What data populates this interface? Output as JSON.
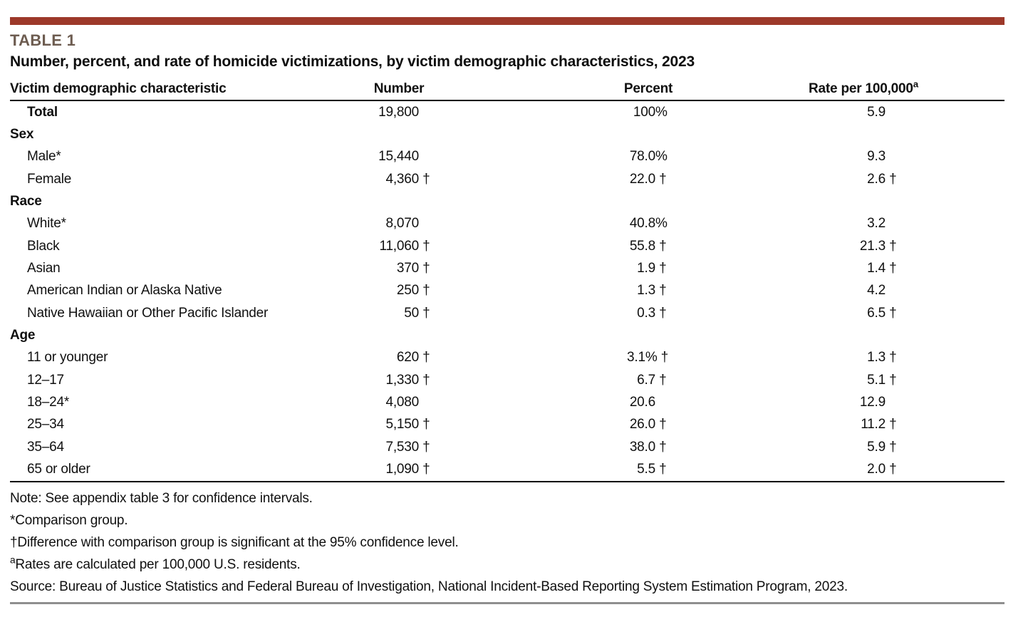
{
  "accent": {
    "bar_color": "#9d392a",
    "table_label_color": "#6d5c50",
    "bottom_rule_color": "#8f8f8f"
  },
  "header": {
    "table_label": "TABLE 1",
    "title": "Number, percent, and rate of homicide victimizations, by victim demographic characteristics, 2023"
  },
  "table": {
    "columns": {
      "characteristic": "Victim demographic characteristic",
      "number": "Number",
      "percent": "Percent",
      "rate": "Rate per 100,000",
      "rate_sup": "a"
    },
    "rows": [
      {
        "kind": "total",
        "label": "Total",
        "number": "19,800",
        "number_sfx": "",
        "percent": "100",
        "percent_sfx": "%",
        "rate": "5.9",
        "rate_sfx": ""
      },
      {
        "kind": "section",
        "label": "Sex",
        "number": "",
        "number_sfx": "",
        "percent": "",
        "percent_sfx": "",
        "rate": "",
        "rate_sfx": ""
      },
      {
        "kind": "data",
        "label": "Male*",
        "number": "15,440",
        "number_sfx": "",
        "percent": "78.0",
        "percent_sfx": "%",
        "rate": "9.3",
        "rate_sfx": ""
      },
      {
        "kind": "data",
        "label": "Female",
        "number": "4,360",
        "number_sfx": " †",
        "percent": "22.0",
        "percent_sfx": " †",
        "rate": "2.6",
        "rate_sfx": " †"
      },
      {
        "kind": "section",
        "label": "Race",
        "number": "",
        "number_sfx": "",
        "percent": "",
        "percent_sfx": "",
        "rate": "",
        "rate_sfx": ""
      },
      {
        "kind": "data",
        "label": "White*",
        "number": "8,070",
        "number_sfx": "",
        "percent": "40.8",
        "percent_sfx": "%",
        "rate": "3.2",
        "rate_sfx": ""
      },
      {
        "kind": "data",
        "label": "Black",
        "number": "11,060",
        "number_sfx": " †",
        "percent": "55.8",
        "percent_sfx": " †",
        "rate": "21.3",
        "rate_sfx": " †"
      },
      {
        "kind": "data",
        "label": "Asian",
        "number": "370",
        "number_sfx": " †",
        "percent": "1.9",
        "percent_sfx": " †",
        "rate": "1.4",
        "rate_sfx": " †"
      },
      {
        "kind": "data",
        "label": "American Indian or Alaska Native",
        "number": "250",
        "number_sfx": " †",
        "percent": "1.3",
        "percent_sfx": " †",
        "rate": "4.2",
        "rate_sfx": ""
      },
      {
        "kind": "data",
        "label": "Native Hawaiian or Other Pacific Islander",
        "number": "50",
        "number_sfx": " †",
        "percent": "0.3",
        "percent_sfx": " †",
        "rate": "6.5",
        "rate_sfx": " †"
      },
      {
        "kind": "section",
        "label": "Age",
        "number": "",
        "number_sfx": "",
        "percent": "",
        "percent_sfx": "",
        "rate": "",
        "rate_sfx": ""
      },
      {
        "kind": "data",
        "label": "11 or younger",
        "number": "620",
        "number_sfx": " †",
        "percent": "3.1",
        "percent_sfx": "% †",
        "rate": "1.3",
        "rate_sfx": " †"
      },
      {
        "kind": "data",
        "label": "12–17",
        "number": "1,330",
        "number_sfx": " †",
        "percent": "6.7",
        "percent_sfx": " †",
        "rate": "5.1",
        "rate_sfx": " †"
      },
      {
        "kind": "data",
        "label": "18–24*",
        "number": "4,080",
        "number_sfx": "",
        "percent": "20.6",
        "percent_sfx": "",
        "rate": "12.9",
        "rate_sfx": ""
      },
      {
        "kind": "data",
        "label": "25–34",
        "number": "5,150",
        "number_sfx": " †",
        "percent": "26.0",
        "percent_sfx": " †",
        "rate": "11.2",
        "rate_sfx": " †"
      },
      {
        "kind": "data",
        "label": "35–64",
        "number": "7,530",
        "number_sfx": " †",
        "percent": "38.0",
        "percent_sfx": " †",
        "rate": "5.9",
        "rate_sfx": " †"
      },
      {
        "kind": "data",
        "label": "65 or older",
        "number": "1,090",
        "number_sfx": " †",
        "percent": "5.5",
        "percent_sfx": " †",
        "rate": "2.0",
        "rate_sfx": " †"
      }
    ]
  },
  "footnotes": [
    {
      "sup": "",
      "text": "Note: See appendix table 3 for confidence intervals."
    },
    {
      "sup": "",
      "text": "*Comparison group."
    },
    {
      "sup": "",
      "text": "†Difference with comparison group is significant at the 95% confidence level."
    },
    {
      "sup": "a",
      "text": "Rates are calculated per 100,000 U.S. residents."
    },
    {
      "sup": "",
      "text": "Source: Bureau of Justice Statistics and Federal Bureau of Investigation, National Incident-Based Reporting System Estimation Program, 2023."
    }
  ]
}
